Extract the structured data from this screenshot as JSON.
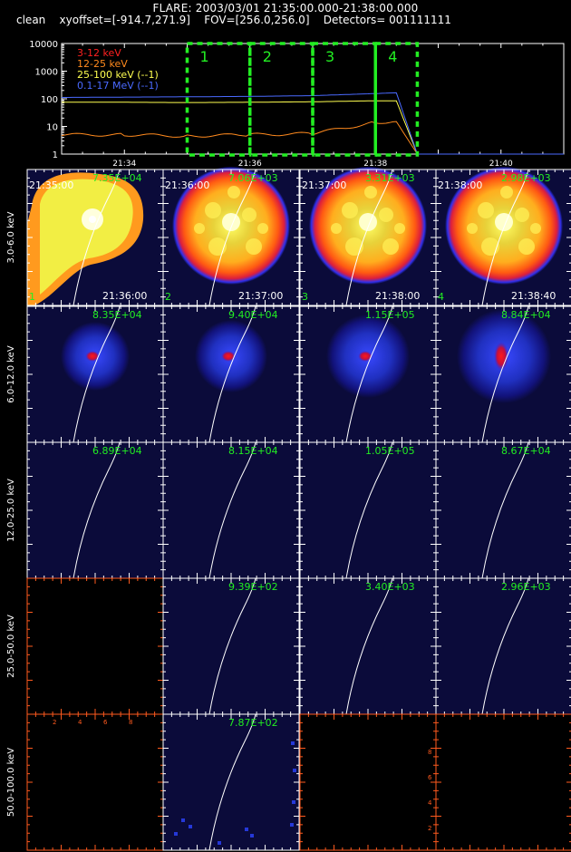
{
  "header": {
    "line1": "FLARE: 2003/03/01 21:35:00.000-21:38:00.000",
    "line2": "clean    xyoffset=[-914.7,271.9]    FOV=[256.0,256.0]    Detectors= 001111111"
  },
  "lightcurve": {
    "x_ticks": [
      "21:34",
      "21:36",
      "21:38",
      "21:40"
    ],
    "y_ticks": [
      "1",
      "10",
      "100",
      "1000",
      "10000"
    ],
    "legend": [
      {
        "label": "3-12 keV",
        "color": "#ff2020"
      },
      {
        "label": "12-25 keV",
        "color": "#ff8a1e"
      },
      {
        "label": "25-100 keV (--1)",
        "color": "#ffff50"
      },
      {
        "label": "0.1-17 MeV (--1)",
        "color": "#4a6aff"
      }
    ],
    "intervals": [
      "1",
      "2",
      "3",
      "4"
    ],
    "interval_color": "#22ee22",
    "axis_color": "#ffffff"
  },
  "chart_data": {
    "type": "line",
    "title": "",
    "xlabel": "",
    "ylabel": "",
    "x_range": [
      "21:33",
      "21:41"
    ],
    "ylim": [
      1,
      10000
    ],
    "yscale": "log",
    "x": [
      "21:33:00",
      "21:34:00",
      "21:35:00",
      "21:36:00",
      "21:37:00",
      "21:38:00",
      "21:38:20",
      "21:38:40",
      "21:41:00"
    ],
    "series": [
      {
        "name": "3-12 keV",
        "values": [
          null,
          null,
          null,
          null,
          null,
          null,
          null,
          null,
          null
        ]
      },
      {
        "name": "12-25 keV",
        "values": [
          5,
          5,
          4.5,
          5,
          5.5,
          14,
          15,
          1,
          1
        ]
      },
      {
        "name": "25-100 keV (--1)",
        "values": [
          75,
          75,
          73,
          75,
          78,
          85,
          85,
          1,
          1
        ]
      },
      {
        "name": "0.1-17 MeV (--1)",
        "values": [
          112,
          115,
          118,
          122,
          130,
          155,
          165,
          1,
          1
        ]
      }
    ],
    "intervals": [
      {
        "label": "1",
        "start": "21:35:00",
        "end": "21:36:00"
      },
      {
        "label": "2",
        "start": "21:36:00",
        "end": "21:37:00"
      },
      {
        "label": "3",
        "start": "21:37:00",
        "end": "21:38:00"
      },
      {
        "label": "4",
        "start": "21:38:00",
        "end": "21:38:40"
      }
    ]
  },
  "image_grid": {
    "rows": [
      "3.0-6.0 keV",
      "6.0-12.0 keV",
      "12.0-25.0 keV",
      "25.0-50.0 keV",
      "50.0-100.0 keV"
    ],
    "start_times": [
      "21:35:00",
      "21:36:00",
      "21:37:00",
      "21:38:00"
    ],
    "end_times": [
      "21:36:00",
      "21:37:00",
      "21:38:00",
      "21:38:40"
    ],
    "peaks": [
      [
        "7.35E+04",
        "7.06E+03",
        "3.31E+03",
        "2.98E+03"
      ],
      [
        "8.35E+04",
        "9.40E+04",
        "1.15E+05",
        "8.84E+04"
      ],
      [
        "6.89E+04",
        "8.15E+04",
        "1.05E+05",
        "8.67E+04"
      ],
      [
        "",
        "9.39E+02",
        "3.40E+03",
        "2.96E+03"
      ],
      [
        "",
        "7.87E+02",
        "",
        ""
      ]
    ],
    "kinds": [
      [
        "flare",
        "disk",
        "disk",
        "disk"
      ],
      [
        "blueA",
        "blueB",
        "blueC",
        "blueD"
      ],
      [
        "dark",
        "dark",
        "dark",
        "dark"
      ],
      [
        "empty",
        "dark",
        "dark",
        "dark"
      ],
      [
        "empty",
        "noise",
        "empty",
        "empty"
      ]
    ],
    "interval_labels": [
      "1",
      "2",
      "3",
      "4"
    ],
    "empty_axis_ticks": [
      "2",
      "4",
      "6",
      "8"
    ],
    "peak_color": "#22ee22",
    "empty_axis_color": "#ff5a1e"
  }
}
